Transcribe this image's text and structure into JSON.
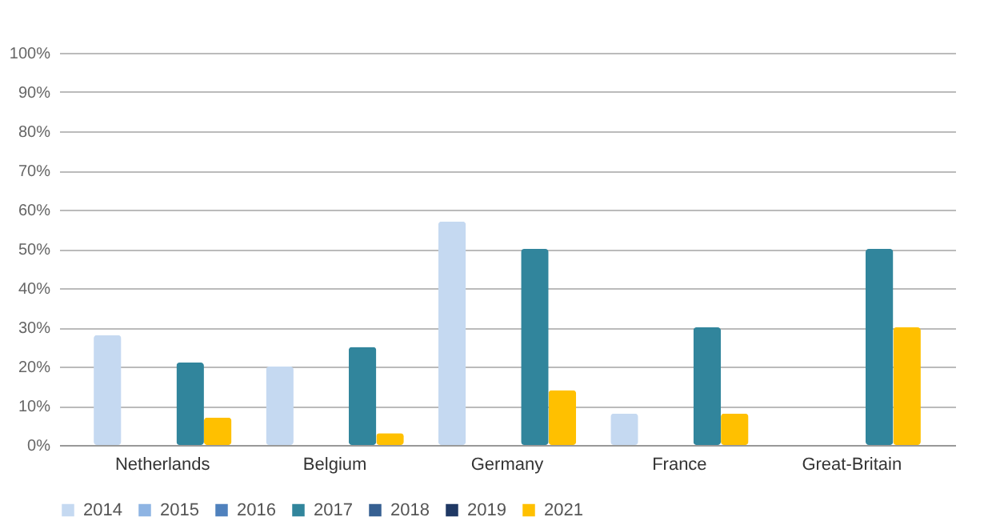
{
  "chart_data": {
    "type": "bar",
    "categories": [
      "Netherlands",
      "Belgium",
      "Germany",
      "France",
      "Great-Britain"
    ],
    "series": [
      {
        "name": "2014",
        "color": "#c5d9f1",
        "values": [
          28,
          20,
          57,
          8,
          0
        ]
      },
      {
        "name": "2015",
        "color": "#8eb4e3",
        "values": [
          0,
          0,
          0,
          0,
          0
        ]
      },
      {
        "name": "2016",
        "color": "#4f81bd",
        "values": [
          0,
          0,
          0,
          0,
          0
        ]
      },
      {
        "name": "2017",
        "color": "#31859c",
        "values": [
          21,
          25,
          50,
          30,
          50
        ]
      },
      {
        "name": "2018",
        "color": "#366092",
        "values": [
          null,
          null,
          null,
          null,
          null
        ]
      },
      {
        "name": "2019",
        "color": "#1f3864",
        "values": [
          null,
          null,
          null,
          null,
          null
        ]
      },
      {
        "name": "2021",
        "color": "#ffc000",
        "values": [
          7,
          3,
          14,
          8,
          30
        ]
      }
    ],
    "ylim": [
      0,
      100
    ],
    "yticks": [
      {
        "value": 0,
        "label": "0%"
      },
      {
        "value": 10,
        "label": "10%"
      },
      {
        "value": 20,
        "label": "20%"
      },
      {
        "value": 30,
        "label": "30%"
      },
      {
        "value": 40,
        "label": "40%"
      },
      {
        "value": 50,
        "label": "50%"
      },
      {
        "value": 60,
        "label": "60%"
      },
      {
        "value": 70,
        "label": "70%"
      },
      {
        "value": 80,
        "label": "80%"
      },
      {
        "value": 90,
        "label": "90%"
      },
      {
        "value": 100,
        "label": "100%"
      }
    ],
    "grid": "y",
    "legend": "bottom"
  }
}
